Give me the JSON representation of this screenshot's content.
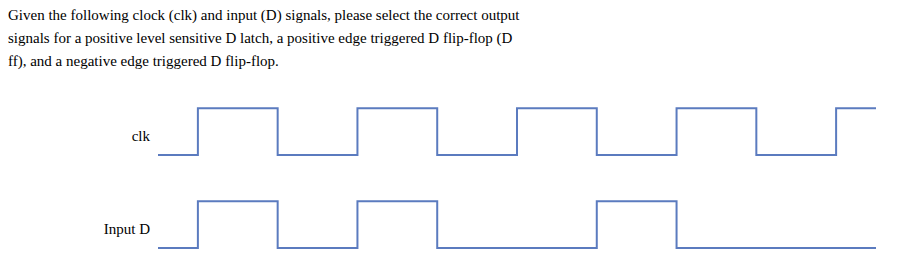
{
  "chart_data": [
    {
      "type": "line",
      "line_style": "step",
      "title": "Given the following clock (clk) and input (D) signals, please select the correct output\nsignals for a positive level sensitive D latch, a positive edge triggered D flip-flop (D\nff), and a negative edge triggered D flip-flop.",
      "ylabel": "clk",
      "x": [
        0,
        1,
        1,
        3,
        3,
        5,
        5,
        7,
        7,
        9,
        9,
        11,
        11,
        13,
        13,
        15,
        15,
        17,
        17,
        18
      ],
      "values": [
        0,
        0,
        1,
        1,
        0,
        0,
        1,
        1,
        0,
        0,
        1,
        1,
        0,
        0,
        1,
        1,
        0,
        0,
        1,
        1
      ],
      "color": "#5b7bbf",
      "xlim": [
        0,
        18
      ],
      "ylim": [
        -0.15,
        1.35
      ],
      "tick_labels": false
    },
    {
      "type": "line",
      "line_style": "step",
      "ylabel": "Input D",
      "x": [
        0,
        1,
        1,
        3,
        3,
        5,
        5,
        7,
        7,
        11,
        11,
        13,
        13,
        15,
        15,
        18
      ],
      "values": [
        0,
        0,
        1,
        1,
        0,
        0,
        1,
        1,
        0,
        0,
        1,
        1,
        0,
        0,
        0,
        0
      ],
      "color": "#5b7bbf",
      "xlim": [
        0,
        18
      ],
      "ylim": [
        -0.15,
        1.35
      ],
      "tick_labels": false
    }
  ]
}
